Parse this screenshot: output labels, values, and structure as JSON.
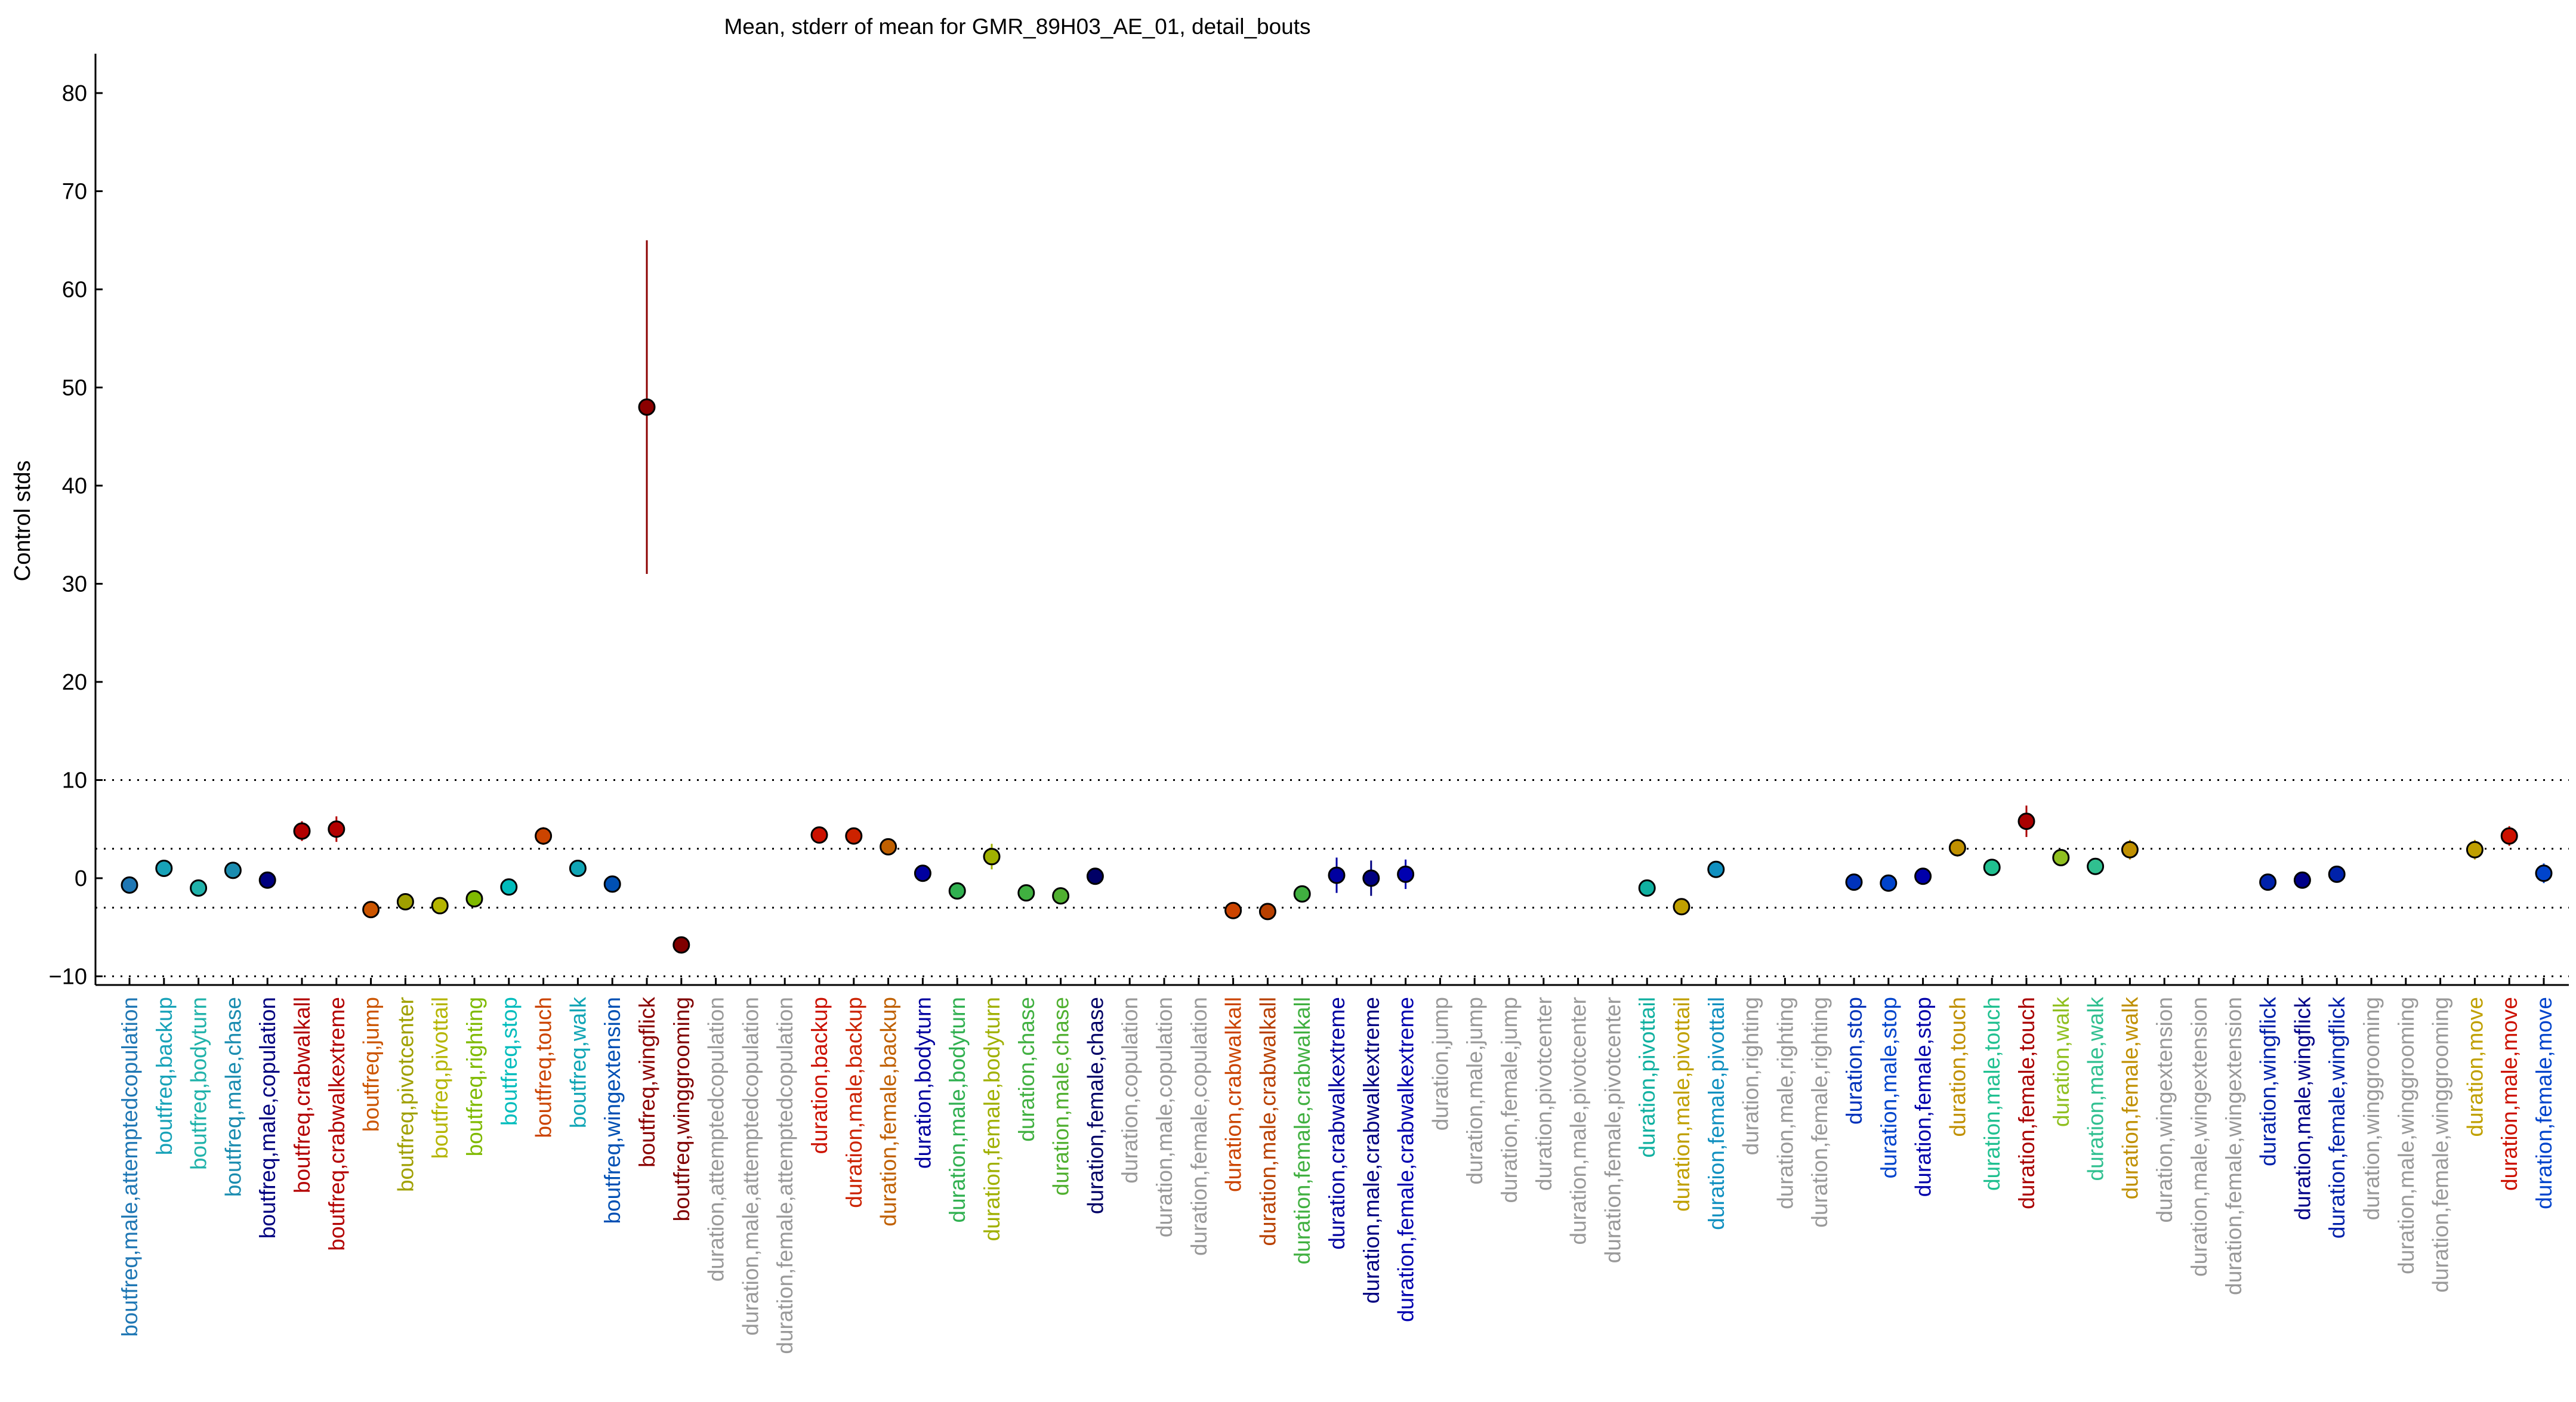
{
  "chart_data": {
    "type": "scatter",
    "title": "Mean, stderr of mean for GMR_89H03_AE_01, detail_bouts",
    "xlabel": "",
    "ylabel": "Control stds",
    "ylim": [
      -11,
      84
    ],
    "yticks": [
      -10,
      0,
      10,
      20,
      30,
      40,
      50,
      60,
      70,
      80
    ],
    "ytick_labels": [
      "−10",
      "0",
      "10",
      "20",
      "30",
      "40",
      "50",
      "60",
      "70",
      "80"
    ],
    "reference_lines": [
      -3,
      3,
      10,
      -10
    ],
    "grid": false,
    "points": [
      {
        "label": "boutfreq,male,attemptedcopulation",
        "color": "#1f77b4",
        "mean": -0.7,
        "sem": 0.4
      },
      {
        "label": "boutfreq,backup",
        "color": "#17a2b8",
        "mean": 1.0,
        "sem": 0.6
      },
      {
        "label": "boutfreq,bodyturn",
        "color": "#20b2aa",
        "mean": -1.0,
        "sem": 0.5
      },
      {
        "label": "boutfreq,male,chase",
        "color": "#1a8cb0",
        "mean": 0.8,
        "sem": 0.6
      },
      {
        "label": "boutfreq,male,copulation",
        "color": "#00007f",
        "mean": -0.2,
        "sem": 0.3
      },
      {
        "label": "boutfreq,crabwalkall",
        "color": "#b30000",
        "mean": 4.8,
        "sem": 1.0
      },
      {
        "label": "boutfreq,crabwalkextreme",
        "color": "#b30000",
        "mean": 5.0,
        "sem": 1.3
      },
      {
        "label": "boutfreq,jump",
        "color": "#cc5500",
        "mean": -3.2,
        "sem": 0.4
      },
      {
        "label": "boutfreq,pivotcenter",
        "color": "#a0a000",
        "mean": -2.4,
        "sem": 0.5
      },
      {
        "label": "boutfreq,pivottail",
        "color": "#b5b500",
        "mean": -2.8,
        "sem": 0.7
      },
      {
        "label": "boutfreq,righting",
        "color": "#7fba00",
        "mean": -2.1,
        "sem": 0.4
      },
      {
        "label": "boutfreq,stop",
        "color": "#00bcbc",
        "mean": -0.9,
        "sem": 0.4
      },
      {
        "label": "boutfreq,touch",
        "color": "#cc4400",
        "mean": 4.3,
        "sem": 0.9
      },
      {
        "label": "boutfreq,walk",
        "color": "#10a5b5",
        "mean": 1.0,
        "sem": 0.8
      },
      {
        "label": "boutfreq,wingextension",
        "color": "#0050b4",
        "mean": -0.6,
        "sem": 0.6
      },
      {
        "label": "boutfreq,wingflick",
        "color": "#8b0000",
        "mean": 48.0,
        "sem": 17.0
      },
      {
        "label": "boutfreq,winggrooming",
        "color": "#800000",
        "mean": -6.8,
        "sem": 0.4
      },
      {
        "label": "duration,attemptedcopulation",
        "color": "#999999",
        "mean": null,
        "sem": null
      },
      {
        "label": "duration,male,attemptedcopulation",
        "color": "#999999",
        "mean": null,
        "sem": null
      },
      {
        "label": "duration,female,attemptedcopulation",
        "color": "#999999",
        "mean": null,
        "sem": null
      },
      {
        "label": "duration,backup",
        "color": "#cc1100",
        "mean": 4.4,
        "sem": 0.6
      },
      {
        "label": "duration,male,backup",
        "color": "#cc2200",
        "mean": 4.3,
        "sem": 0.7
      },
      {
        "label": "duration,female,backup",
        "color": "#c06000",
        "mean": 3.2,
        "sem": 0.8
      },
      {
        "label": "duration,bodyturn",
        "color": "#0000a0",
        "mean": 0.5,
        "sem": 0.8
      },
      {
        "label": "duration,male,bodyturn",
        "color": "#30b050",
        "mean": -1.3,
        "sem": 0.5
      },
      {
        "label": "duration,female,bodyturn",
        "color": "#a0b000",
        "mean": 2.2,
        "sem": 1.3
      },
      {
        "label": "duration,chase",
        "color": "#40b040",
        "mean": -1.5,
        "sem": 0.4
      },
      {
        "label": "duration,male,chase",
        "color": "#50b030",
        "mean": -1.8,
        "sem": 0.4
      },
      {
        "label": "duration,female,chase",
        "color": "#000066",
        "mean": 0.2,
        "sem": 0.2
      },
      {
        "label": "duration,copulation",
        "color": "#999999",
        "mean": null,
        "sem": null
      },
      {
        "label": "duration,male,copulation",
        "color": "#999999",
        "mean": null,
        "sem": null
      },
      {
        "label": "duration,female,copulation",
        "color": "#999999",
        "mean": null,
        "sem": null
      },
      {
        "label": "duration,crabwalkall",
        "color": "#cc4400",
        "mean": -3.3,
        "sem": 0.4
      },
      {
        "label": "duration,male,crabwalkall",
        "color": "#b84000",
        "mean": -3.4,
        "sem": 0.4
      },
      {
        "label": "duration,female,crabwalkall",
        "color": "#40b040",
        "mean": -1.6,
        "sem": 0.5
      },
      {
        "label": "duration,crabwalkextreme",
        "color": "#0000a0",
        "mean": 0.3,
        "sem": 1.8
      },
      {
        "label": "duration,male,crabwalkextreme",
        "color": "#000080",
        "mean": 0.0,
        "sem": 1.8
      },
      {
        "label": "duration,female,crabwalkextreme",
        "color": "#0000b0",
        "mean": 0.4,
        "sem": 1.5
      },
      {
        "label": "duration,jump",
        "color": "#999999",
        "mean": null,
        "sem": null
      },
      {
        "label": "duration,male,jump",
        "color": "#999999",
        "mean": null,
        "sem": null
      },
      {
        "label": "duration,female,jump",
        "color": "#999999",
        "mean": null,
        "sem": null
      },
      {
        "label": "duration,pivotcenter",
        "color": "#999999",
        "mean": null,
        "sem": null
      },
      {
        "label": "duration,male,pivotcenter",
        "color": "#999999",
        "mean": null,
        "sem": null
      },
      {
        "label": "duration,female,pivotcenter",
        "color": "#999999",
        "mean": null,
        "sem": null
      },
      {
        "label": "duration,pivottail",
        "color": "#10b0a0",
        "mean": -1.0,
        "sem": 0.5
      },
      {
        "label": "duration,male,pivottail",
        "color": "#c0a000",
        "mean": -2.9,
        "sem": 0.5
      },
      {
        "label": "duration,female,pivottail",
        "color": "#1090c0",
        "mean": 0.9,
        "sem": 0.6
      },
      {
        "label": "duration,righting",
        "color": "#999999",
        "mean": null,
        "sem": null
      },
      {
        "label": "duration,male,righting",
        "color": "#999999",
        "mean": null,
        "sem": null
      },
      {
        "label": "duration,female,righting",
        "color": "#999999",
        "mean": null,
        "sem": null
      },
      {
        "label": "duration,stop",
        "color": "#0033bb",
        "mean": -0.4,
        "sem": 0.3
      },
      {
        "label": "duration,male,stop",
        "color": "#0044cc",
        "mean": -0.5,
        "sem": 0.3
      },
      {
        "label": "duration,female,stop",
        "color": "#0000aa",
        "mean": 0.2,
        "sem": 0.4
      },
      {
        "label": "duration,touch",
        "color": "#c09000",
        "mean": 3.1,
        "sem": 0.9
      },
      {
        "label": "duration,male,touch",
        "color": "#20c090",
        "mean": 1.1,
        "sem": 0.5
      },
      {
        "label": "duration,female,touch",
        "color": "#aa0000",
        "mean": 5.8,
        "sem": 1.6
      },
      {
        "label": "duration,walk",
        "color": "#90c020",
        "mean": 2.1,
        "sem": 0.5
      },
      {
        "label": "duration,male,walk",
        "color": "#30c090",
        "mean": 1.2,
        "sem": 0.6
      },
      {
        "label": "duration,female,walk",
        "color": "#c09000",
        "mean": 2.9,
        "sem": 1.0
      },
      {
        "label": "duration,wingextension",
        "color": "#999999",
        "mean": null,
        "sem": null
      },
      {
        "label": "duration,male,wingextension",
        "color": "#999999",
        "mean": null,
        "sem": null
      },
      {
        "label": "duration,female,wingextension",
        "color": "#999999",
        "mean": null,
        "sem": null
      },
      {
        "label": "duration,wingflick",
        "color": "#0022aa",
        "mean": -0.4,
        "sem": 0.5
      },
      {
        "label": "duration,male,wingflick",
        "color": "#000088",
        "mean": -0.2,
        "sem": 0.7
      },
      {
        "label": "duration,female,wingflick",
        "color": "#0022aa",
        "mean": 0.4,
        "sem": 0.4
      },
      {
        "label": "duration,winggrooming",
        "color": "#999999",
        "mean": null,
        "sem": null
      },
      {
        "label": "duration,male,winggrooming",
        "color": "#999999",
        "mean": null,
        "sem": null
      },
      {
        "label": "duration,female,winggrooming",
        "color": "#999999",
        "mean": null,
        "sem": null
      },
      {
        "label": "duration,move",
        "color": "#c0a000",
        "mean": 2.9,
        "sem": 1.0
      },
      {
        "label": "duration,male,move",
        "color": "#cc1100",
        "mean": 4.3,
        "sem": 1.0
      },
      {
        "label": "duration,female,move",
        "color": "#0044cc",
        "mean": 0.5,
        "sem": 1.0
      }
    ]
  }
}
